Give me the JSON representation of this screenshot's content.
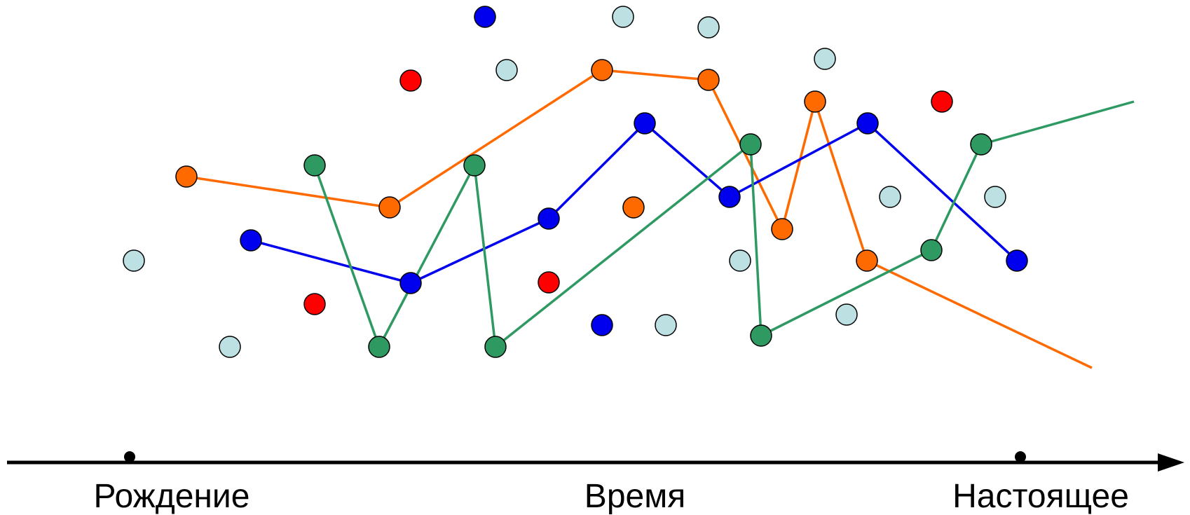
{
  "timeline": {
    "labels": {
      "birth": "Рождение",
      "time": "Время",
      "present": "Настоящее"
    }
  },
  "colors": {
    "orange": "#ff6a00",
    "blue": "#0000ee",
    "green": "#2e9a62",
    "red": "#ff0000",
    "light": "#bde0e3",
    "axis": "#000000"
  },
  "series": [
    {
      "color": "orange"
    },
    {
      "color": "blue"
    },
    {
      "color": "green"
    }
  ],
  "isolated_dots": [
    {
      "color": "blue"
    },
    {
      "color": "light"
    },
    {
      "color": "light"
    },
    {
      "color": "light"
    },
    {
      "color": "red"
    },
    {
      "color": "light"
    },
    {
      "color": "red"
    },
    {
      "color": "orange"
    },
    {
      "color": "light"
    },
    {
      "color": "light"
    },
    {
      "color": "light"
    },
    {
      "color": "light"
    },
    {
      "color": "red"
    },
    {
      "color": "red"
    },
    {
      "color": "blue"
    },
    {
      "color": "light"
    },
    {
      "color": "light"
    },
    {
      "color": "light"
    }
  ]
}
